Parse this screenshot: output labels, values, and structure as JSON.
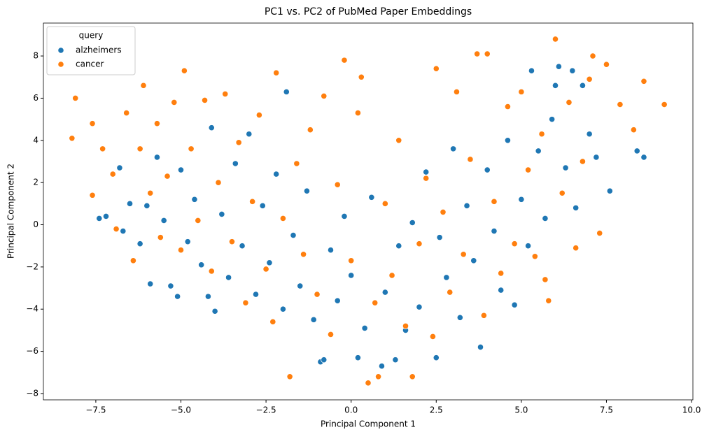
{
  "chart_data": {
    "type": "scatter",
    "title": "PC1 vs. PC2 of PubMed Paper Embeddings",
    "x_label": "Principal Component 1",
    "y_label": "Principal Component 2",
    "legend_title": "query",
    "legend": "upper left",
    "xlim": [
      -9.04,
      10.04
    ],
    "ylim": [
      -8.3,
      9.56
    ],
    "xticks": [
      {
        "value": -7.5,
        "label": "−7.5"
      },
      {
        "value": -5.0,
        "label": "−5.0"
      },
      {
        "value": -2.5,
        "label": "−2.5"
      },
      {
        "value": 0,
        "label": "0.0"
      },
      {
        "value": 2.5,
        "label": "2.5"
      },
      {
        "value": 5,
        "label": "5.0"
      },
      {
        "value": 7.5,
        "label": "7.5"
      },
      {
        "value": 10,
        "label": "10.0"
      }
    ],
    "yticks": [
      {
        "value": -8,
        "label": "−8"
      },
      {
        "value": -6,
        "label": "−6"
      },
      {
        "value": -4,
        "label": "−4"
      },
      {
        "value": -2,
        "label": "−2"
      },
      0,
      2,
      4,
      6,
      8
    ],
    "series": [
      {
        "name": "alzheimers",
        "color": "#1f77b4",
        "x": [
          -7.4,
          -7.2,
          -6.8,
          -6.7,
          -6.5,
          -6.2,
          -6.0,
          -5.9,
          -5.7,
          -5.5,
          -5.3,
          -5.1,
          -5.0,
          -4.8,
          -4.6,
          -4.4,
          -4.2,
          -4.1,
          -4.0,
          -3.8,
          -3.6,
          -3.4,
          -3.2,
          -3.0,
          -2.8,
          -2.6,
          -2.4,
          -2.2,
          -2.0,
          -1.9,
          -1.7,
          -1.5,
          -1.3,
          -1.1,
          -0.9,
          -0.8,
          -0.6,
          -0.4,
          -0.2,
          0.0,
          0.2,
          0.4,
          0.6,
          0.9,
          1.0,
          1.3,
          1.4,
          1.6,
          1.8,
          2.0,
          2.2,
          2.5,
          2.6,
          2.8,
          3.0,
          3.2,
          3.4,
          3.6,
          3.8,
          4.0,
          4.2,
          4.4,
          4.6,
          4.8,
          5.0,
          5.2,
          5.3,
          5.5,
          5.7,
          5.9,
          6.0,
          6.1,
          6.3,
          6.5,
          6.6,
          6.8,
          7.0,
          7.2,
          7.6,
          8.4,
          8.6
        ],
        "values": [
          0.3,
          0.4,
          2.7,
          -0.3,
          1.0,
          -0.9,
          0.9,
          -2.8,
          3.2,
          0.2,
          -2.9,
          -3.4,
          2.6,
          -0.8,
          1.2,
          -1.9,
          -3.4,
          4.6,
          -4.1,
          0.5,
          -2.5,
          2.9,
          -1.0,
          4.3,
          -3.3,
          0.9,
          -1.8,
          2.4,
          -4.0,
          6.3,
          -0.5,
          -2.9,
          1.6,
          -4.5,
          -6.5,
          -6.4,
          -1.2,
          -3.6,
          0.4,
          -2.4,
          -6.3,
          -4.9,
          1.3,
          -6.7,
          -3.2,
          -6.4,
          -1.0,
          -5.0,
          0.1,
          -3.9,
          2.5,
          -6.3,
          -0.6,
          -2.5,
          3.6,
          -4.4,
          0.9,
          -1.7,
          -5.8,
          2.6,
          -0.3,
          -3.1,
          4.0,
          -3.8,
          1.2,
          -1.0,
          7.3,
          3.5,
          0.3,
          5.0,
          6.6,
          7.5,
          2.7,
          7.3,
          0.8,
          6.6,
          4.3,
          3.2,
          1.6,
          3.5,
          3.2
        ]
      },
      {
        "name": "cancer",
        "color": "#ff7f0e",
        "x": [
          -8.2,
          -8.1,
          -7.6,
          -7.6,
          -7.3,
          -7.0,
          -6.9,
          -6.6,
          -6.4,
          -6.2,
          -6.1,
          -5.9,
          -5.7,
          -5.6,
          -5.4,
          -5.2,
          -5.0,
          -4.9,
          -4.7,
          -4.5,
          -4.3,
          -4.1,
          -3.9,
          -3.7,
          -3.5,
          -3.3,
          -3.1,
          -2.9,
          -2.7,
          -2.5,
          -2.3,
          -2.2,
          -2.0,
          -1.8,
          -1.6,
          -1.4,
          -1.2,
          -1.0,
          -0.8,
          -0.6,
          -0.4,
          -0.2,
          0.0,
          0.2,
          0.3,
          0.5,
          0.7,
          0.8,
          1.0,
          1.2,
          1.4,
          1.6,
          1.8,
          2.0,
          2.2,
          2.4,
          2.5,
          2.7,
          2.9,
          3.1,
          3.3,
          3.5,
          3.7,
          3.9,
          4.0,
          4.2,
          4.4,
          4.6,
          4.8,
          5.0,
          5.2,
          5.4,
          5.6,
          5.7,
          5.8,
          6.0,
          6.2,
          6.4,
          6.6,
          6.8,
          7.0,
          7.1,
          7.3,
          7.5,
          7.9,
          8.3,
          8.6,
          9.2
        ],
        "values": [
          4.1,
          6.0,
          4.8,
          1.4,
          3.6,
          2.4,
          -0.2,
          5.3,
          -1.7,
          3.6,
          6.6,
          1.5,
          4.8,
          -0.6,
          2.3,
          5.8,
          -1.2,
          7.3,
          3.6,
          0.2,
          5.9,
          -2.2,
          2.0,
          6.2,
          -0.8,
          3.9,
          -3.7,
          1.1,
          5.2,
          -2.1,
          -4.6,
          7.2,
          0.3,
          -7.2,
          2.9,
          -1.4,
          4.5,
          -3.3,
          6.1,
          -5.2,
          1.9,
          7.8,
          -1.7,
          5.3,
          7.0,
          -7.5,
          -3.7,
          -7.2,
          1.0,
          -2.4,
          4.0,
          -4.8,
          -7.2,
          -0.9,
          2.2,
          -5.3,
          7.4,
          0.6,
          -3.2,
          6.3,
          -1.4,
          3.1,
          8.1,
          -4.3,
          8.1,
          1.1,
          -2.3,
          5.6,
          -0.9,
          6.3,
          2.6,
          -1.5,
          4.3,
          -2.6,
          -3.6,
          8.8,
          1.5,
          5.8,
          -1.1,
          3.0,
          6.9,
          8.0,
          -0.4,
          7.6,
          5.7,
          4.5,
          6.8,
          5.7
        ]
      }
    ]
  }
}
